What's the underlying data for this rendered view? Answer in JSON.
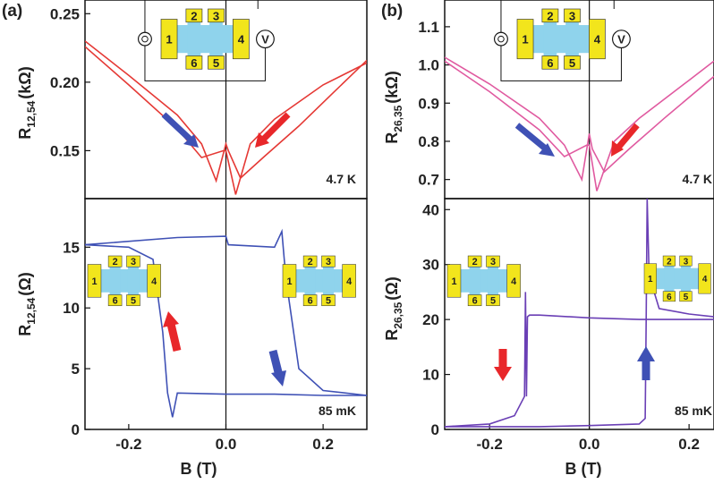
{
  "chart_data": [
    {
      "type": "line",
      "panel_label": "(a)",
      "ylabel": "R",
      "ylabel_sub": "12,54",
      "ylabel_unit": "(kΩ)",
      "xlim": [
        -0.29,
        0.29
      ],
      "ylim": [
        0.115,
        0.26
      ],
      "yticks": [
        0.15,
        0.2,
        0.25
      ],
      "ytick_labels": [
        "0.15",
        "0.20",
        "0.25"
      ],
      "temperature": "4.7 K",
      "color": "#e53935",
      "series": [
        {
          "x": [
            -0.29,
            -0.2,
            -0.1,
            -0.05,
            -0.02,
            0.0,
            0.005,
            0.03,
            0.08,
            0.15,
            0.22,
            0.29
          ],
          "y": [
            0.23,
            0.205,
            0.176,
            0.155,
            0.128,
            0.155,
            0.15,
            0.13,
            0.146,
            0.168,
            0.192,
            0.216
          ]
        },
        {
          "x": [
            -0.29,
            -0.2,
            -0.1,
            -0.05,
            -0.005,
            0.0,
            0.02,
            0.05,
            0.1,
            0.2,
            0.29
          ],
          "y": [
            0.226,
            0.198,
            0.166,
            0.145,
            0.15,
            0.15,
            0.118,
            0.155,
            0.173,
            0.198,
            0.214
          ]
        }
      ],
      "inset": {
        "contacts": [
          "1",
          "2",
          "3",
          "4",
          "5",
          "6"
        ],
        "meter": "V"
      }
    },
    {
      "type": "line",
      "panel_label": "",
      "ylabel": "R",
      "ylabel_sub": "12,54",
      "ylabel_unit": "(Ω)",
      "xlabel": "B (T)",
      "xlim": [
        -0.29,
        0.29
      ],
      "ylim": [
        0,
        19
      ],
      "xticks": [
        -0.2,
        0.0,
        0.2
      ],
      "xtick_labels": [
        "-0.2",
        "0.0",
        "0.2"
      ],
      "yticks": [
        0,
        5,
        10,
        15
      ],
      "ytick_labels": [
        "0",
        "5",
        "10",
        "15"
      ],
      "temperature": "85 mK",
      "color": "#3f51b5",
      "series": [
        {
          "x": [
            -0.29,
            -0.2,
            -0.15,
            -0.13,
            -0.12,
            -0.11,
            -0.1,
            0.0,
            0.1,
            0.2,
            0.29
          ],
          "y": [
            15.2,
            15.0,
            14.0,
            8.0,
            3.0,
            1.0,
            3.0,
            2.9,
            2.9,
            2.8,
            2.8
          ]
        },
        {
          "x": [
            -0.29,
            -0.1,
            0.0,
            0.005,
            0.1,
            0.115,
            0.12,
            0.125,
            0.15,
            0.2,
            0.29
          ],
          "y": [
            15.2,
            15.8,
            15.9,
            15.2,
            15.0,
            16.3,
            14.0,
            12.0,
            5.0,
            3.2,
            2.8
          ]
        }
      ],
      "inset_left": {
        "contacts": [
          "1",
          "2",
          "3",
          "4",
          "5",
          "6"
        ]
      },
      "inset_right": {
        "contacts": [
          "1",
          "2",
          "3",
          "4",
          "5",
          "6"
        ]
      }
    },
    {
      "type": "line",
      "panel_label": "(b)",
      "ylabel": "R",
      "ylabel_sub": "26,35",
      "ylabel_unit": "(kΩ)",
      "xlim": [
        -0.29,
        0.25
      ],
      "ylim": [
        0.65,
        1.17
      ],
      "yticks": [
        0.7,
        0.8,
        0.9,
        1.0,
        1.1
      ],
      "ytick_labels": [
        "0.7",
        "0.8",
        "0.9",
        "1.0",
        "1.1"
      ],
      "temperature": "4.7 K",
      "color": "#e05aa0",
      "series": [
        {
          "x": [
            -0.29,
            -0.2,
            -0.1,
            -0.05,
            -0.015,
            0.0,
            0.006,
            0.03,
            0.08,
            0.15,
            0.25
          ],
          "y": [
            1.02,
            0.95,
            0.86,
            0.79,
            0.7,
            0.82,
            0.78,
            0.72,
            0.78,
            0.86,
            0.97
          ]
        },
        {
          "x": [
            -0.29,
            -0.2,
            -0.1,
            -0.05,
            -0.005,
            0.0,
            0.015,
            0.05,
            0.1,
            0.2,
            0.25
          ],
          "y": [
            1.01,
            0.93,
            0.83,
            0.76,
            0.79,
            0.79,
            0.67,
            0.8,
            0.86,
            0.96,
            1.01
          ]
        }
      ],
      "inset": {
        "contacts": [
          "1",
          "2",
          "3",
          "4",
          "5",
          "6"
        ],
        "meter": "V"
      }
    },
    {
      "type": "line",
      "panel_label": "",
      "ylabel": "R",
      "ylabel_sub": "26,35",
      "ylabel_unit": "(Ω)",
      "xlabel": "B (T)",
      "xlim": [
        -0.29,
        0.25
      ],
      "ylim": [
        0,
        42
      ],
      "xticks": [
        -0.2,
        0.0,
        0.2
      ],
      "xtick_labels": [
        "-0.2",
        "0.0",
        "0.2"
      ],
      "yticks": [
        0,
        10,
        20,
        30,
        40
      ],
      "ytick_labels": [
        "0",
        "10",
        "20",
        "30",
        "40"
      ],
      "temperature": "85 mK",
      "color": "#6a3fb5",
      "series": [
        {
          "x": [
            -0.29,
            -0.2,
            -0.15,
            -0.13,
            -0.128,
            -0.126,
            -0.124,
            -0.12,
            -0.1,
            0.0,
            0.1,
            0.2,
            0.25
          ],
          "y": [
            0.5,
            1.0,
            2.5,
            6.0,
            25.0,
            6.0,
            20.5,
            20.8,
            20.8,
            20.3,
            20.0,
            20.0,
            20.0
          ]
        },
        {
          "x": [
            -0.29,
            -0.1,
            0.0,
            0.1,
            0.112,
            0.114,
            0.116,
            0.12,
            0.14,
            0.2,
            0.25
          ],
          "y": [
            0.5,
            0.5,
            0.7,
            1.0,
            2.0,
            20.0,
            42.0,
            28.0,
            22.0,
            21.0,
            20.5
          ]
        }
      ],
      "inset_left": {
        "contacts": [
          "1",
          "2",
          "3",
          "4",
          "5",
          "6"
        ]
      },
      "inset_right": {
        "contacts": [
          "1",
          "2",
          "3",
          "4",
          "5",
          "6"
        ]
      }
    }
  ],
  "colors": {
    "contact_pad": "#f2e51c",
    "device": "#8fd3ec",
    "arrow_red": "#e8272a",
    "arrow_blue": "#3f51b5"
  }
}
